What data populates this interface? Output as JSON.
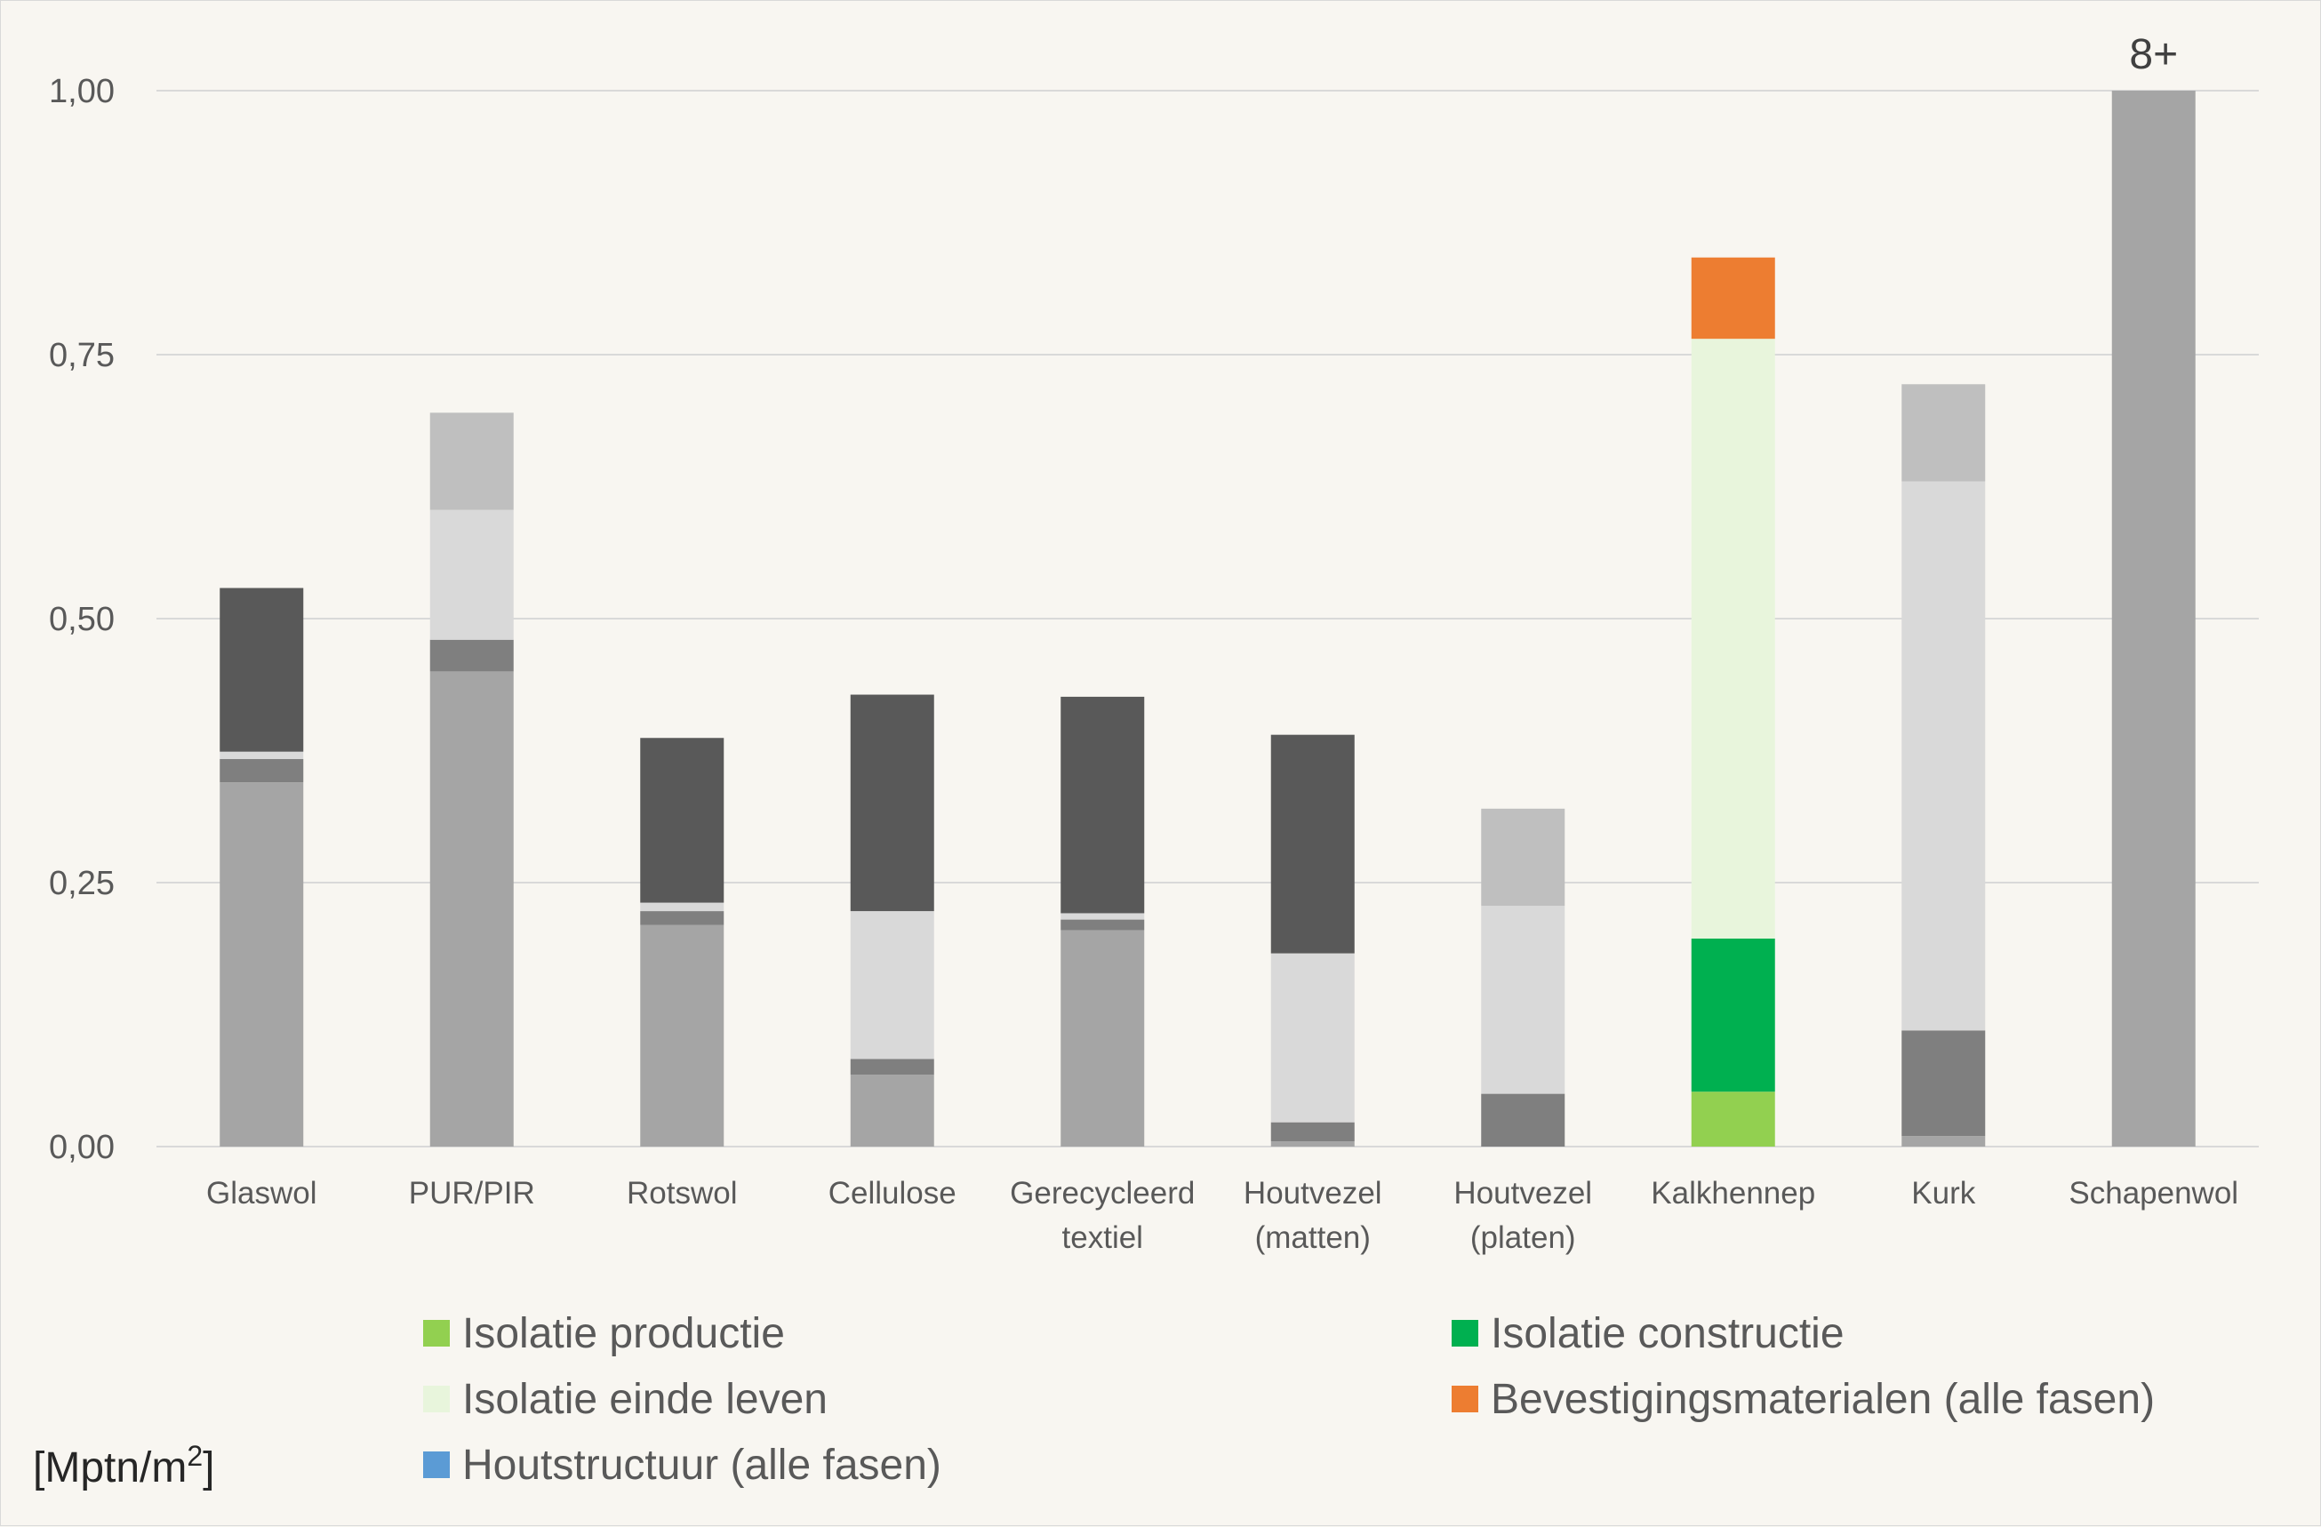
{
  "chart_data": {
    "type": "bar",
    "stacked": true,
    "title": "",
    "xlabel": "",
    "ylabel": "[Mptn/m²]",
    "ylabel_parts": {
      "base": "[Mptn/m",
      "sup": "2",
      "close": "]"
    },
    "ylim": [
      0,
      1.0
    ],
    "yticks": [
      {
        "value": 0.0,
        "label": "0,00"
      },
      {
        "value": 0.25,
        "label": "0,25"
      },
      {
        "value": 0.5,
        "label": "0,50"
      },
      {
        "value": 0.75,
        "label": "0,75"
      },
      {
        "value": 1.0,
        "label": "1,00"
      }
    ],
    "grid": true,
    "legend_position": "bottom",
    "categories": [
      [
        "Glaswol"
      ],
      [
        "PUR/PIR"
      ],
      [
        "Rotswol"
      ],
      [
        "Cellulose"
      ],
      [
        "Gerecycleerd",
        "textiel"
      ],
      [
        "Houtvezel",
        "(matten)"
      ],
      [
        "Houtvezel",
        "(platen)"
      ],
      [
        "Kalkhennep"
      ],
      [
        "Kurk"
      ],
      [
        "Schapenwol"
      ]
    ],
    "series": [
      {
        "name": "Isolatie productie",
        "color": "#92d050",
        "grey": "#a5a5a5",
        "values": [
          0.345,
          0.45,
          0.21,
          0.068,
          0.205,
          0.005,
          0.0,
          0.052,
          0.01,
          1.0
        ]
      },
      {
        "name": "Isolatie constructie",
        "color": "#00b050",
        "grey": "#7f7f7f",
        "values": [
          0.022,
          0.03,
          0.013,
          0.015,
          0.01,
          0.018,
          0.05,
          0.145,
          0.1,
          0.0
        ]
      },
      {
        "name": "Isolatie einde leven",
        "color": "#e8f5dc",
        "grey": "#d9d9d9",
        "values": [
          0.007,
          0.123,
          0.008,
          0.14,
          0.006,
          0.16,
          0.178,
          0.568,
          0.52,
          0.0
        ]
      },
      {
        "name": "Bevestigingsmaterialen (alle fasen)",
        "color": "#ed7d31",
        "grey": "#bfbfbf",
        "values": [
          0.0,
          0.092,
          0.0,
          0.0,
          0.0,
          0.0,
          0.092,
          0.077,
          0.092,
          0.0
        ]
      },
      {
        "name": "Houtstructuur (alle fasen)",
        "color": "#5b9bd5",
        "grey": "#595959",
        "values": [
          0.155,
          0.0,
          0.156,
          0.205,
          0.205,
          0.207,
          0.0,
          0.0,
          0.0,
          0.0
        ]
      }
    ],
    "highlight_category_index": 7,
    "annotations": [
      {
        "category": "Schapenwol",
        "text": "8+"
      }
    ]
  }
}
